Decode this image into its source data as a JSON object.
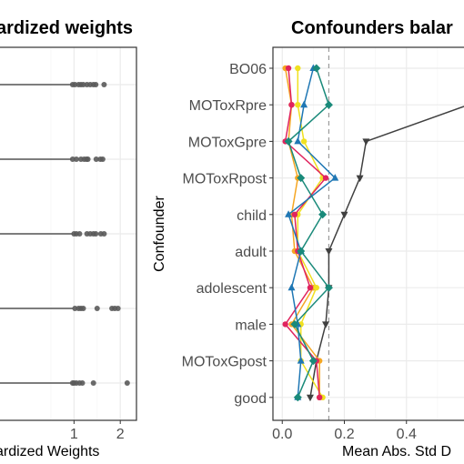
{
  "chart_data": [
    {
      "type": "box",
      "title": "ardized weights",
      "xlabel": "ardized Weights",
      "ylabel": "",
      "xlim": [
        -0.6,
        2.35
      ],
      "x_ticks": [
        1,
        2
      ],
      "grid": true,
      "legend": "none",
      "rows": [
        {
          "box_right": 0.95,
          "outliers": [
            0.97,
            1.02,
            1.1,
            1.15,
            1.2,
            1.28,
            1.35,
            1.42,
            1.47,
            1.65
          ]
        },
        {
          "box_right": 0.95,
          "outliers": [
            0.97,
            1.05,
            1.15,
            1.22,
            1.27,
            1.3,
            1.48,
            1.57,
            1.62
          ]
        },
        {
          "box_right": 0.98,
          "outliers": [
            1.0,
            1.05,
            1.12,
            1.28,
            1.35,
            1.42,
            1.47,
            1.58,
            1.65
          ]
        },
        {
          "box_right": 0.98,
          "outliers": [
            1.02,
            1.1,
            1.15,
            1.2,
            1.5,
            1.82,
            1.88,
            1.95
          ]
        },
        {
          "box_right": 0.95,
          "outliers": [
            0.97,
            1.0,
            1.05,
            1.12,
            1.18,
            1.42,
            2.15
          ]
        }
      ]
    },
    {
      "type": "line",
      "title": "Confounders balar",
      "xlabel": "Mean Abs. Std D",
      "ylabel": "Confounder",
      "xlim": [
        -0.03,
        0.6
      ],
      "x_ticks": [
        0.0,
        0.2,
        0.4
      ],
      "x_tick_labels": [
        "0.0",
        "0.2",
        "0.4"
      ],
      "threshold_line": 0.15,
      "grid": true,
      "legend": "none",
      "categories": [
        "BO06",
        "MOToxRpre",
        "MOToxGpre",
        "MOToxRpost",
        "child",
        "adult",
        "adolescent",
        "male",
        "MOToxGpost",
        "good"
      ],
      "series": [
        {
          "color": "#404040",
          "marker": "triangle-down",
          "values": [
            null,
            0.6,
            0.27,
            0.25,
            0.2,
            0.15,
            0.15,
            0.14,
            0.11,
            0.09
          ]
        },
        {
          "color": "#f5a623",
          "marker": "circle",
          "values": [
            0.01,
            0.03,
            0.02,
            0.05,
            0.03,
            0.04,
            0.1,
            0.03,
            0.12,
            0.12
          ]
        },
        {
          "color": "#f0e020",
          "marker": "circle",
          "values": [
            0.05,
            0.05,
            0.07,
            0.13,
            0.05,
            0.05,
            0.11,
            0.06,
            0.06,
            0.13
          ]
        },
        {
          "color": "#e0245e",
          "marker": "circle",
          "values": [
            0.02,
            0.03,
            0.01,
            0.14,
            0.04,
            0.05,
            0.09,
            0.01,
            0.11,
            0.12
          ]
        },
        {
          "color": "#1f77b4",
          "marker": "triangle-up",
          "values": [
            0.1,
            0.07,
            0.05,
            0.17,
            0.02,
            0.06,
            0.03,
            0.05,
            0.06,
            0.05
          ]
        },
        {
          "color": "#1a8a7a",
          "marker": "diamond",
          "values": [
            0.11,
            0.15,
            0.02,
            0.06,
            0.13,
            0.06,
            0.15,
            0.04,
            0.1,
            0.05
          ]
        }
      ]
    }
  ]
}
